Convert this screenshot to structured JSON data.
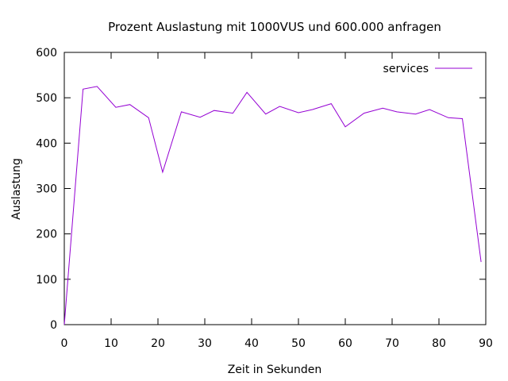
{
  "chart_data": {
    "type": "line",
    "title": "Prozent Auslastung mit 1000VUS und 600.000 anfragen",
    "xlabel": "Zeit in Sekunden",
    "ylabel": "Auslastung",
    "xlim": [
      0,
      90
    ],
    "ylim": [
      0,
      600
    ],
    "xticks": [
      0,
      10,
      20,
      30,
      40,
      50,
      60,
      70,
      80,
      90
    ],
    "yticks": [
      0,
      100,
      200,
      300,
      400,
      500,
      600
    ],
    "grid": false,
    "legend_position": "top-right",
    "series": [
      {
        "name": "services",
        "color": "#9400d3",
        "x": [
          0,
          4,
          7,
          11,
          14,
          18,
          21,
          25,
          29,
          32,
          36,
          39,
          43,
          46,
          50,
          53,
          57,
          60,
          64,
          68,
          71,
          75,
          78,
          82,
          85,
          89
        ],
        "y": [
          0,
          519,
          525,
          479,
          485,
          456,
          336,
          469,
          457,
          472,
          466,
          512,
          464,
          481,
          467,
          474,
          487,
          436,
          466,
          477,
          469,
          464,
          474,
          456,
          454,
          138
        ]
      }
    ]
  }
}
